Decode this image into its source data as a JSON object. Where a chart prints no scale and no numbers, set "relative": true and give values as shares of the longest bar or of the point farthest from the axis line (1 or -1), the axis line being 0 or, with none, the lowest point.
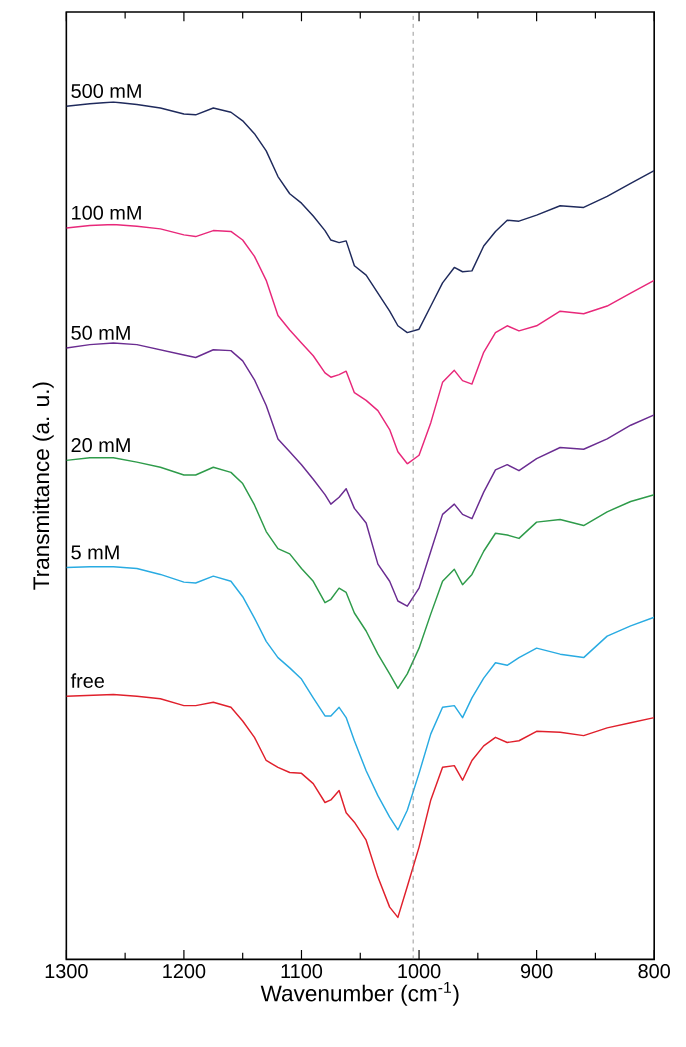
{
  "chart_data": {
    "type": "line",
    "xlabel": "Wavenumber (cm$^{-1}$)",
    "ylabel": "Transmittance (a. u.)",
    "relative": true,
    "marker": "none",
    "line_style": "solid",
    "xlim": [
      1300,
      800
    ],
    "xticks": [
      1300,
      1200,
      1100,
      1000,
      900,
      800
    ],
    "ref_lines": [
      {
        "axis": "x",
        "value": 1005,
        "color": "#808080",
        "line_style": "dashed"
      }
    ],
    "x": [
      1300,
      1280,
      1260,
      1240,
      1220,
      1200,
      1190,
      1175,
      1160,
      1150,
      1140,
      1130,
      1120,
      1110,
      1100,
      1090,
      1080,
      1075,
      1068,
      1062,
      1055,
      1045,
      1035,
      1025,
      1018,
      1010,
      1000,
      990,
      980,
      970,
      963,
      955,
      945,
      935,
      925,
      915,
      900,
      880,
      860,
      840,
      820,
      800
    ],
    "series": [
      {
        "name": "500 mM",
        "color": "#1f2a5c",
        "values": [
          0.995,
          0.998,
          1.0,
          0.997,
          0.993,
          0.986,
          0.985,
          0.993,
          0.988,
          0.978,
          0.963,
          0.943,
          0.913,
          0.893,
          0.882,
          0.867,
          0.85,
          0.839,
          0.836,
          0.838,
          0.809,
          0.798,
          0.777,
          0.756,
          0.739,
          0.731,
          0.735,
          0.762,
          0.789,
          0.807,
          0.802,
          0.803,
          0.832,
          0.849,
          0.862,
          0.861,
          0.868,
          0.879,
          0.877,
          0.89,
          0.905,
          0.92
        ]
      },
      {
        "name": "100 mM",
        "color": "#e8287a",
        "values": [
          0.853,
          0.856,
          0.857,
          0.855,
          0.852,
          0.845,
          0.843,
          0.85,
          0.849,
          0.839,
          0.82,
          0.792,
          0.751,
          0.734,
          0.719,
          0.704,
          0.684,
          0.679,
          0.682,
          0.686,
          0.661,
          0.652,
          0.64,
          0.618,
          0.592,
          0.578,
          0.588,
          0.626,
          0.673,
          0.687,
          0.675,
          0.671,
          0.708,
          0.731,
          0.739,
          0.733,
          0.739,
          0.756,
          0.753,
          0.762,
          0.777,
          0.792
        ]
      },
      {
        "name": "50 mM",
        "color": "#6a2c91",
        "values": [
          0.713,
          0.717,
          0.719,
          0.717,
          0.711,
          0.705,
          0.702,
          0.711,
          0.71,
          0.698,
          0.676,
          0.646,
          0.607,
          0.592,
          0.577,
          0.56,
          0.542,
          0.531,
          0.539,
          0.549,
          0.526,
          0.509,
          0.461,
          0.441,
          0.418,
          0.412,
          0.433,
          0.476,
          0.519,
          0.531,
          0.519,
          0.514,
          0.545,
          0.571,
          0.577,
          0.57,
          0.584,
          0.597,
          0.595,
          0.607,
          0.623,
          0.635
        ]
      },
      {
        "name": "20 mM",
        "color": "#2e9b4a",
        "values": [
          0.582,
          0.585,
          0.585,
          0.58,
          0.574,
          0.565,
          0.565,
          0.574,
          0.568,
          0.555,
          0.53,
          0.499,
          0.479,
          0.473,
          0.456,
          0.441,
          0.416,
          0.42,
          0.433,
          0.428,
          0.404,
          0.383,
          0.356,
          0.333,
          0.316,
          0.333,
          0.363,
          0.403,
          0.441,
          0.455,
          0.437,
          0.449,
          0.476,
          0.497,
          0.495,
          0.491,
          0.51,
          0.513,
          0.506,
          0.522,
          0.534,
          0.542
        ]
      },
      {
        "name": "5 mM",
        "color": "#29abe2",
        "values": [
          0.457,
          0.458,
          0.458,
          0.456,
          0.449,
          0.44,
          0.439,
          0.447,
          0.441,
          0.423,
          0.398,
          0.371,
          0.352,
          0.34,
          0.327,
          0.305,
          0.284,
          0.284,
          0.294,
          0.282,
          0.255,
          0.22,
          0.191,
          0.166,
          0.151,
          0.174,
          0.217,
          0.263,
          0.294,
          0.296,
          0.282,
          0.305,
          0.328,
          0.346,
          0.343,
          0.352,
          0.363,
          0.356,
          0.352,
          0.377,
          0.389,
          0.399
        ]
      },
      {
        "name": "free",
        "color": "#e0202c",
        "values": [
          0.307,
          0.308,
          0.309,
          0.307,
          0.304,
          0.296,
          0.296,
          0.3,
          0.294,
          0.278,
          0.259,
          0.232,
          0.224,
          0.218,
          0.217,
          0.205,
          0.183,
          0.186,
          0.197,
          0.171,
          0.16,
          0.139,
          0.096,
          0.061,
          0.049,
          0.085,
          0.131,
          0.186,
          0.224,
          0.226,
          0.209,
          0.232,
          0.249,
          0.259,
          0.253,
          0.255,
          0.266,
          0.265,
          0.261,
          0.27,
          0.276,
          0.282
        ]
      }
    ]
  }
}
